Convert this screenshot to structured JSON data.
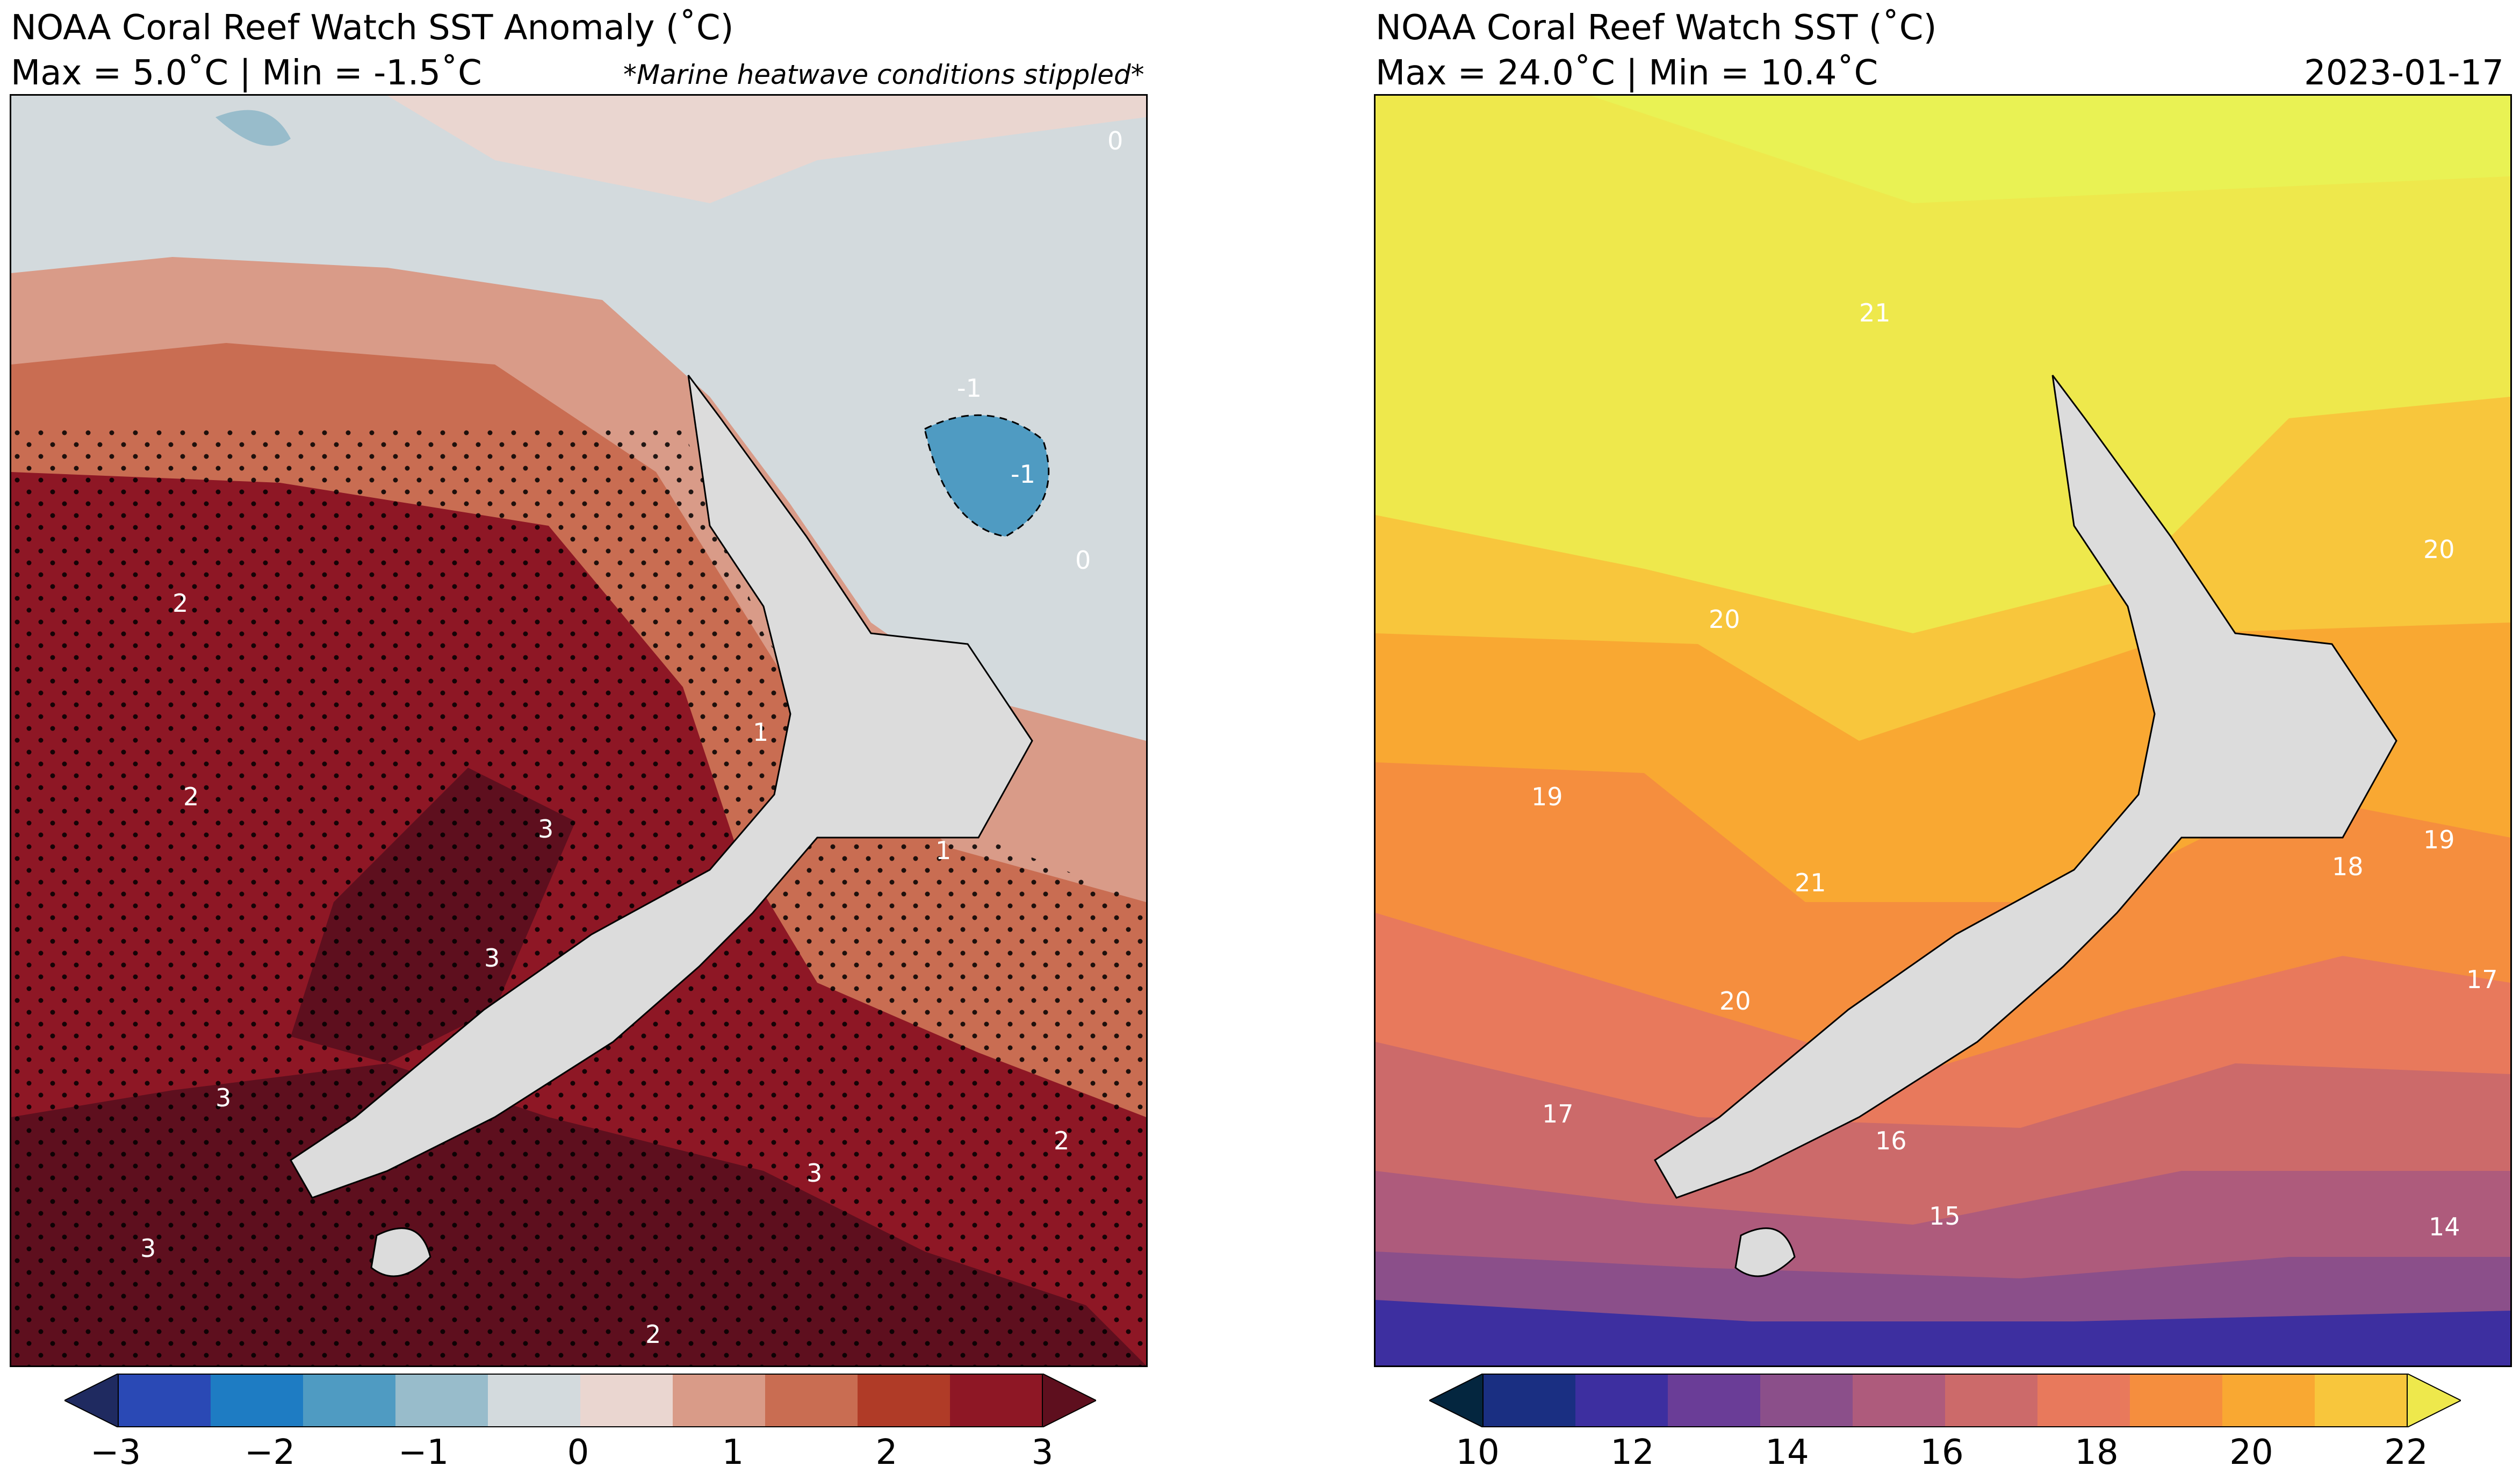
{
  "left_map": {
    "title": "NOAA Coral Reef Watch SST Anomaly (˚C)",
    "subtitle": "Max = 5.0˚C | Min = -1.5˚C",
    "note": "*Marine heatwave conditions stippled*",
    "colorbar": {
      "ticks": [
        "−3",
        "−2",
        "−1",
        "0",
        "1",
        "2",
        "3"
      ],
      "colors": [
        "#1f2a60",
        "#2a49b5",
        "#1e7cc3",
        "#4f9bc2",
        "#98bccb",
        "#d3dadd",
        "#ead6d0",
        "#d99b88",
        "#c96d52",
        "#b03b27",
        "#8e1725",
        "#5e0f1e"
      ]
    },
    "contour_labels": [
      "0",
      "0",
      "-1",
      "-1",
      "1",
      "1",
      "2",
      "2",
      "2",
      "2",
      "3",
      "3",
      "3",
      "3",
      "3"
    ]
  },
  "right_map": {
    "title": "NOAA Coral Reef Watch SST (˚C)",
    "subtitle": "Max = 24.0˚C | Min = 10.4˚C",
    "date": "2023-01-17",
    "colorbar": {
      "ticks": [
        "10",
        "12",
        "14",
        "16",
        "18",
        "20",
        "22"
      ],
      "colors": [
        "#04263f",
        "#1a2f82",
        "#3d2fa0",
        "#6a3d97",
        "#8b4f8a",
        "#ae5b7c",
        "#cc6a6a",
        "#e8795c",
        "#f58e3e",
        "#f9a832",
        "#f8c63c",
        "#eee84c"
      ]
    },
    "contour_labels": [
      "21",
      "21",
      "20",
      "20",
      "20",
      "19",
      "19",
      "18",
      "17",
      "17",
      "16",
      "15",
      "14"
    ]
  }
}
